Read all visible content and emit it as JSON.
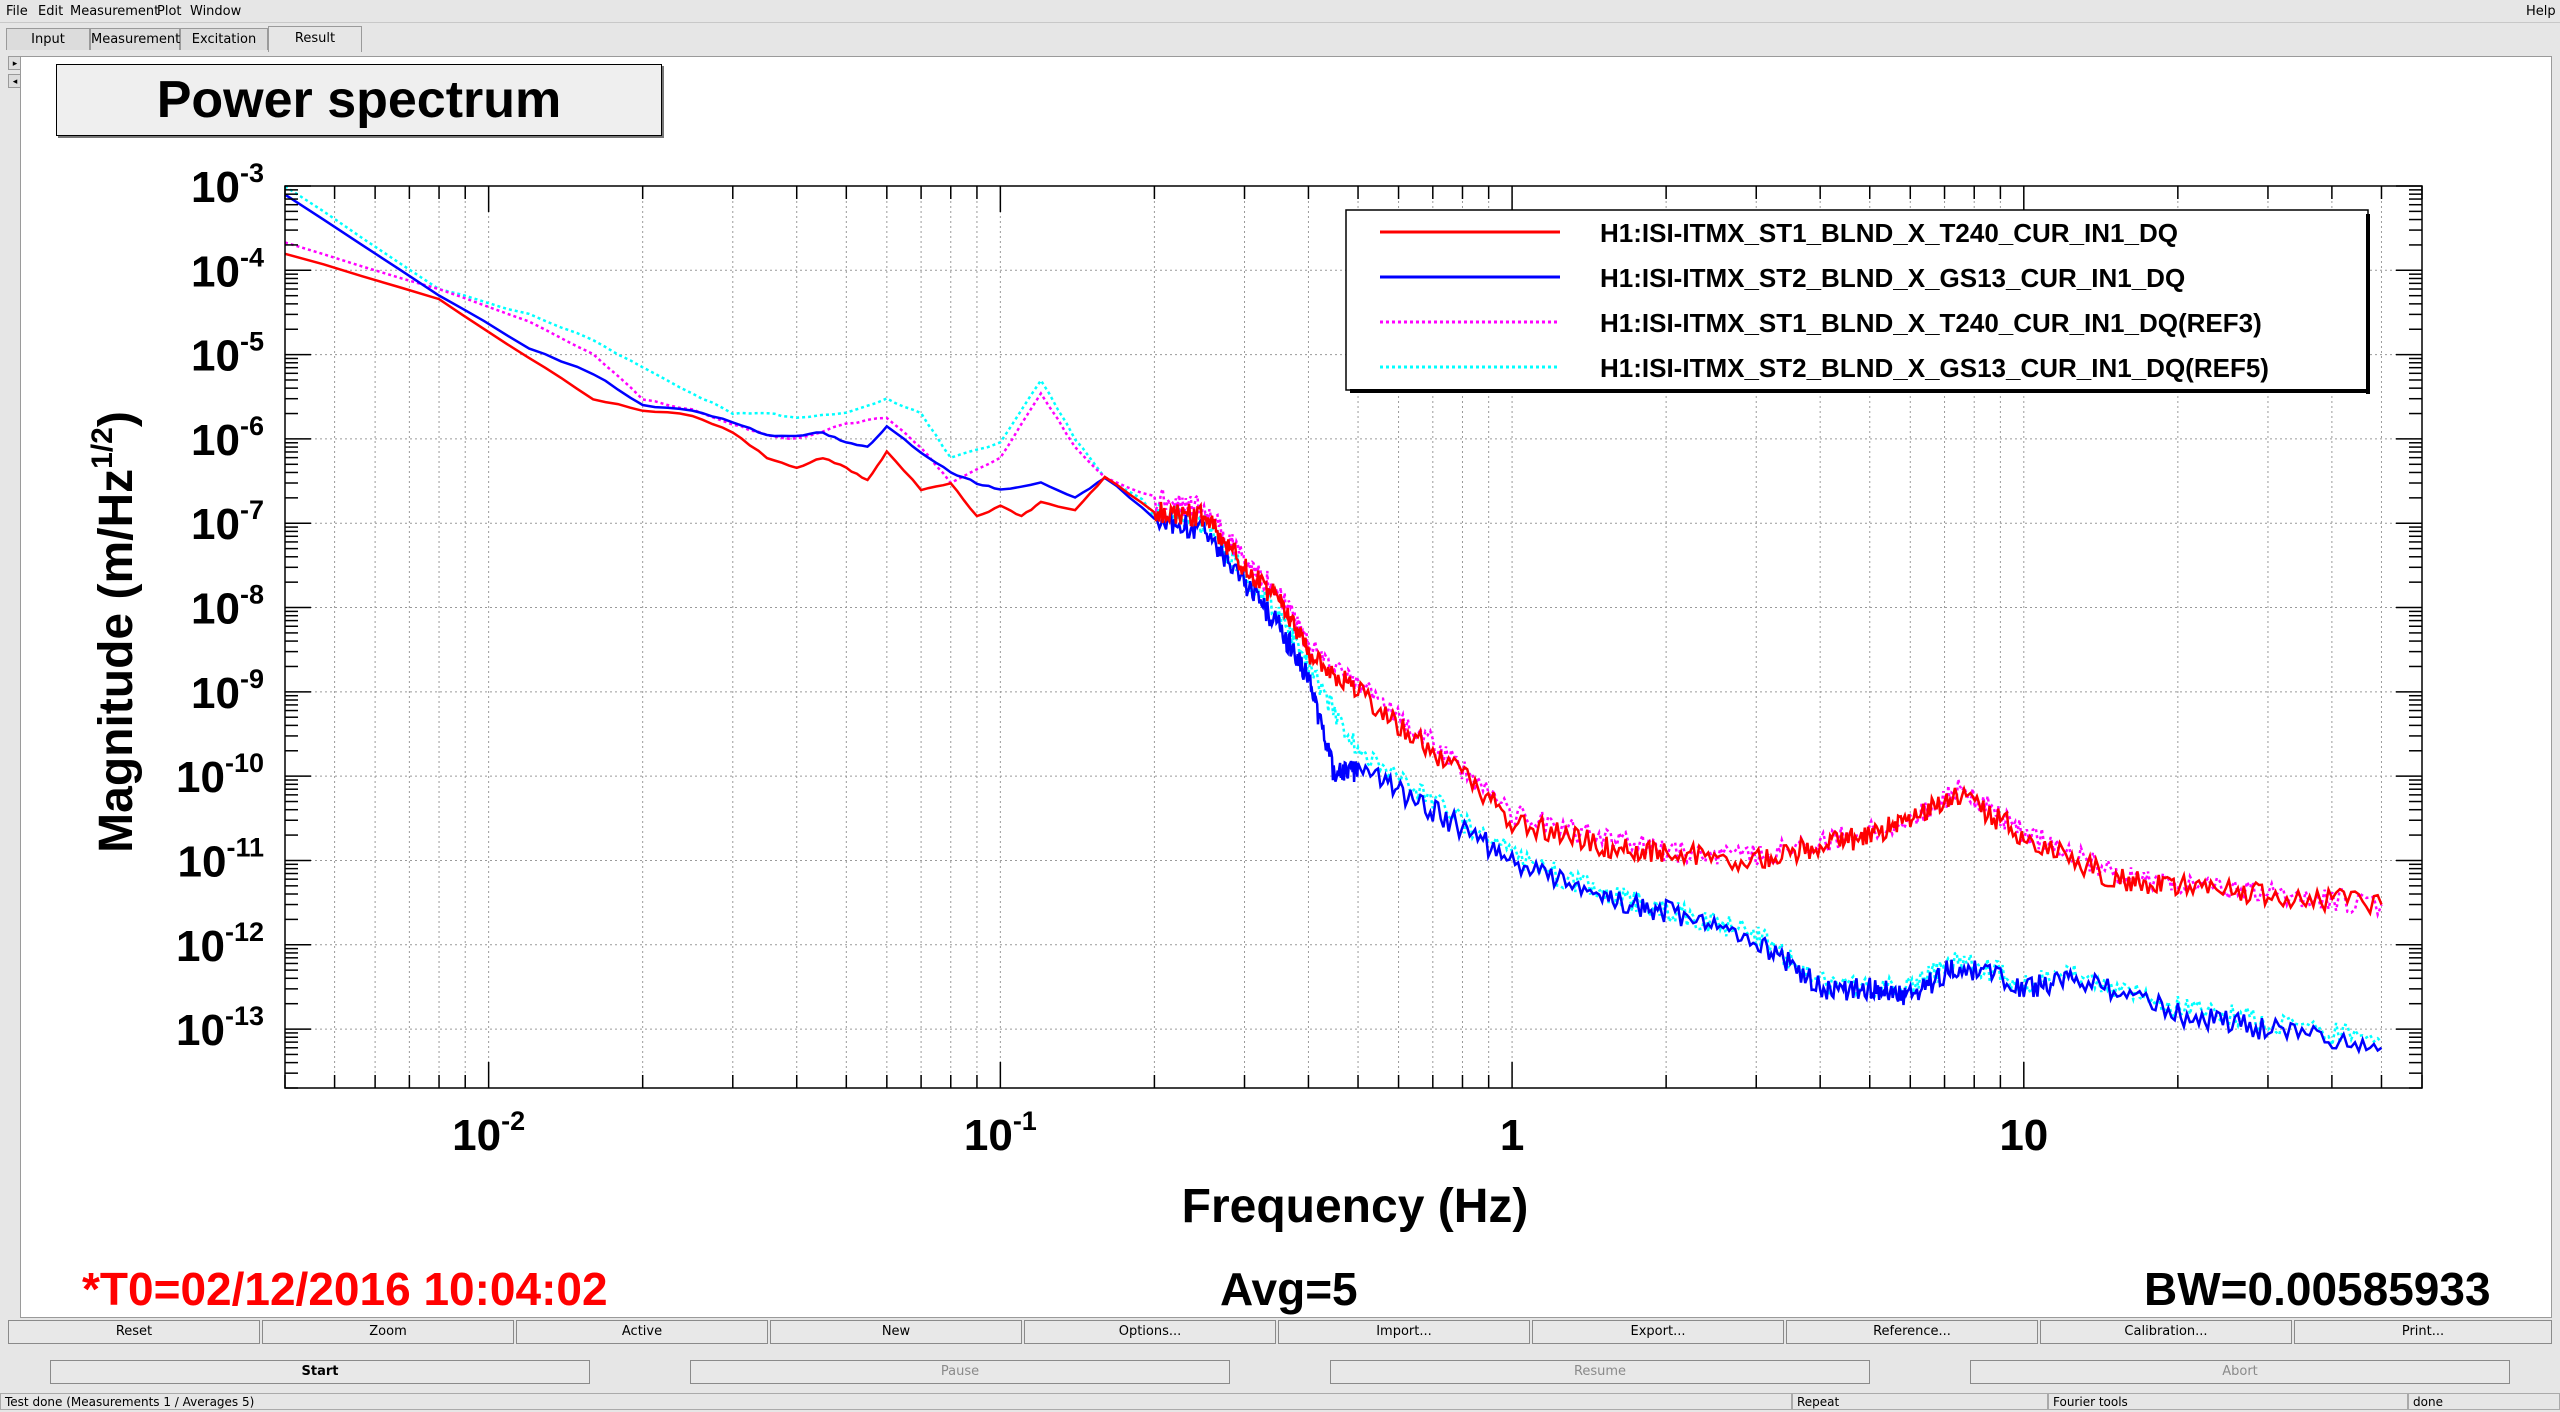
{
  "menu": {
    "items": [
      "File",
      "Edit",
      "Measurement",
      "Plot",
      "Window"
    ],
    "help": "Help"
  },
  "tabs": [
    "Input",
    "Measurement",
    "Excitation",
    "Result"
  ],
  "active_tab": "Result",
  "plot_title": "Power spectrum",
  "info": {
    "t0": "*T0=02/12/2016 10:04:02",
    "avg": "Avg=5",
    "bw": "BW=0.00585933"
  },
  "colors": {
    "t0": "#ff0000",
    "series_red": "#ff0000",
    "series_blue": "#0000ff",
    "series_magenta": "#ff00ff",
    "series_cyan": "#00ffff"
  },
  "toolbar": [
    "Reset",
    "Zoom",
    "Active",
    "New",
    "Options...",
    "Import...",
    "Export...",
    "Reference...",
    "Calibration...",
    "Print..."
  ],
  "controls": [
    "Start",
    "Pause",
    "Resume",
    "Abort"
  ],
  "status": {
    "main": "Test done (Measurements 1 / Averages 5)",
    "repeat": "Repeat",
    "tools": "Fourier tools",
    "state": "done"
  },
  "chart_data": {
    "type": "line",
    "xlabel": "Frequency (Hz)",
    "ylabel": "Magnitude (m/Hz^1/2)",
    "xscale": "log",
    "yscale": "log",
    "xlim": [
      0.004,
      60
    ],
    "ylim": [
      2e-14,
      0.001
    ],
    "xticks": [
      "10^-2",
      "10^-1",
      "1",
      "10"
    ],
    "yticks": [
      "10^-3",
      "10^-4",
      "10^-5",
      "10^-6",
      "10^-7",
      "10^-8",
      "10^-9",
      "10^-10",
      "10^-11",
      "10^-12",
      "10^-13"
    ],
    "grid": true,
    "legend_position": "top-right",
    "series": [
      {
        "name": "H1:ISI-ITMX_ST1_BLND_X_T240_CUR_IN1_DQ",
        "color": "#ff0000",
        "style": "solid",
        "points": [
          [
            0.004,
            0.00016
          ],
          [
            0.008,
            4.5e-05
          ],
          [
            0.012,
            9e-06
          ],
          [
            0.016,
            3e-06
          ],
          [
            0.02,
            2.2e-06
          ],
          [
            0.025,
            1.9e-06
          ],
          [
            0.03,
            1.2e-06
          ],
          [
            0.035,
            6e-07
          ],
          [
            0.04,
            4.5e-07
          ],
          [
            0.045,
            6e-07
          ],
          [
            0.05,
            4.5e-07
          ],
          [
            0.055,
            3.2e-07
          ],
          [
            0.06,
            7e-07
          ],
          [
            0.07,
            2.5e-07
          ],
          [
            0.08,
            3e-07
          ],
          [
            0.09,
            1.2e-07
          ],
          [
            0.1,
            1.6e-07
          ],
          [
            0.11,
            1.2e-07
          ],
          [
            0.12,
            1.8e-07
          ],
          [
            0.14,
            1.4e-07
          ],
          [
            0.16,
            3.5e-07
          ],
          [
            0.2,
            1.4e-07
          ],
          [
            0.25,
            1.2e-07
          ],
          [
            0.3,
            3e-08
          ],
          [
            0.35,
            1.2e-08
          ],
          [
            0.4,
            3e-09
          ],
          [
            0.5,
            1e-09
          ],
          [
            0.7,
            2e-10
          ],
          [
            1,
            3e-11
          ],
          [
            1.5,
            1.5e-11
          ],
          [
            2,
            1.2e-11
          ],
          [
            3,
            1e-11
          ],
          [
            4,
            1.5e-11
          ],
          [
            5,
            2e-11
          ],
          [
            6,
            3e-11
          ],
          [
            7.5,
            6e-11
          ],
          [
            10,
            2e-11
          ],
          [
            15,
            6e-12
          ],
          [
            20,
            5e-12
          ],
          [
            30,
            4e-12
          ],
          [
            50,
            3e-12
          ]
        ]
      },
      {
        "name": "H1:ISI-ITMX_ST2_BLND_X_GS13_CUR_IN1_DQ",
        "color": "#0000ff",
        "style": "solid",
        "points": [
          [
            0.004,
            0.0008
          ],
          [
            0.008,
            5e-05
          ],
          [
            0.012,
            1.2e-05
          ],
          [
            0.016,
            6e-06
          ],
          [
            0.02,
            2.5e-06
          ],
          [
            0.025,
            2.2e-06
          ],
          [
            0.03,
            1.6e-06
          ],
          [
            0.035,
            1.1e-06
          ],
          [
            0.04,
            1.1e-06
          ],
          [
            0.045,
            1.2e-06
          ],
          [
            0.05,
            9e-07
          ],
          [
            0.055,
            8e-07
          ],
          [
            0.06,
            1.4e-06
          ],
          [
            0.07,
            7e-07
          ],
          [
            0.08,
            4e-07
          ],
          [
            0.09,
            3e-07
          ],
          [
            0.1,
            2.5e-07
          ],
          [
            0.12,
            3e-07
          ],
          [
            0.14,
            2e-07
          ],
          [
            0.16,
            3.5e-07
          ],
          [
            0.2,
            1.2e-07
          ],
          [
            0.25,
            8e-08
          ],
          [
            0.3,
            2e-08
          ],
          [
            0.35,
            6e-09
          ],
          [
            0.4,
            1.5e-09
          ],
          [
            0.45,
            1e-10
          ],
          [
            0.5,
            1.2e-10
          ],
          [
            0.7,
            4e-11
          ],
          [
            1,
            1e-11
          ],
          [
            1.5,
            3.5e-12
          ],
          [
            2,
            2.5e-12
          ],
          [
            3,
            1.2e-12
          ],
          [
            4,
            3e-13
          ],
          [
            5,
            3e-13
          ],
          [
            6,
            2.5e-13
          ],
          [
            7.5,
            6e-13
          ],
          [
            10,
            3e-13
          ],
          [
            13,
            4e-13
          ],
          [
            20,
            1.5e-13
          ],
          [
            30,
            1e-13
          ],
          [
            50,
            6e-14
          ]
        ]
      },
      {
        "name": "H1:ISI-ITMX_ST1_BLND_X_T240_CUR_IN1_DQ(REF3)",
        "color": "#ff00ff",
        "style": "dotted",
        "points": [
          [
            0.004,
            0.00021
          ],
          [
            0.008,
            6e-05
          ],
          [
            0.012,
            2.5e-05
          ],
          [
            0.016,
            1e-05
          ],
          [
            0.02,
            3e-06
          ],
          [
            0.025,
            2.2e-06
          ],
          [
            0.03,
            1.5e-06
          ],
          [
            0.035,
            1.1e-06
          ],
          [
            0.04,
            1e-06
          ],
          [
            0.05,
            1.5e-06
          ],
          [
            0.06,
            1.8e-06
          ],
          [
            0.07,
            8e-07
          ],
          [
            0.08,
            3e-07
          ],
          [
            0.1,
            6e-07
          ],
          [
            0.12,
            3.5e-06
          ],
          [
            0.14,
            8e-07
          ],
          [
            0.16,
            3.5e-07
          ],
          [
            0.2,
            2e-07
          ],
          [
            0.25,
            1.5e-07
          ],
          [
            0.3,
            3.5e-08
          ],
          [
            0.35,
            1.5e-08
          ],
          [
            0.4,
            3.5e-09
          ],
          [
            0.5,
            1.2e-09
          ],
          [
            0.7,
            2.5e-10
          ],
          [
            1,
            3.5e-11
          ],
          [
            1.5,
            1.8e-11
          ],
          [
            2,
            1.3e-11
          ],
          [
            3,
            1.1e-11
          ],
          [
            4,
            1.6e-11
          ],
          [
            6,
            3e-11
          ],
          [
            7.5,
            7e-11
          ],
          [
            10,
            2.2e-11
          ],
          [
            15,
            7e-12
          ],
          [
            20,
            5e-12
          ],
          [
            30,
            4e-12
          ],
          [
            50,
            3e-12
          ]
        ]
      },
      {
        "name": "H1:ISI-ITMX_ST2_BLND_X_GS13_CUR_IN1_DQ(REF5)",
        "color": "#00ffff",
        "style": "dotted",
        "points": [
          [
            0.004,
            0.001
          ],
          [
            0.008,
            6e-05
          ],
          [
            0.012,
            3e-05
          ],
          [
            0.016,
            1.5e-05
          ],
          [
            0.02,
            7e-06
          ],
          [
            0.025,
            3.5e-06
          ],
          [
            0.03,
            2e-06
          ],
          [
            0.035,
            2e-06
          ],
          [
            0.04,
            1.8e-06
          ],
          [
            0.05,
            2e-06
          ],
          [
            0.06,
            3e-06
          ],
          [
            0.07,
            2e-06
          ],
          [
            0.08,
            6e-07
          ],
          [
            0.1,
            9e-07
          ],
          [
            0.12,
            5e-06
          ],
          [
            0.14,
            1e-06
          ],
          [
            0.16,
            3.5e-07
          ],
          [
            0.2,
            1.6e-07
          ],
          [
            0.25,
            1e-07
          ],
          [
            0.3,
            2.5e-08
          ],
          [
            0.35,
            8e-09
          ],
          [
            0.4,
            2e-09
          ],
          [
            0.5,
            2e-10
          ],
          [
            0.7,
            5e-11
          ],
          [
            1,
            1.2e-11
          ],
          [
            1.5,
            4e-12
          ],
          [
            2,
            2.6e-12
          ],
          [
            3,
            1.3e-12
          ],
          [
            4,
            3.5e-13
          ],
          [
            6,
            3e-13
          ],
          [
            7.5,
            7e-13
          ],
          [
            10,
            3.5e-13
          ],
          [
            13,
            4.5e-13
          ],
          [
            20,
            1.8e-13
          ],
          [
            30,
            1.2e-13
          ],
          [
            50,
            7e-14
          ]
        ]
      }
    ]
  }
}
